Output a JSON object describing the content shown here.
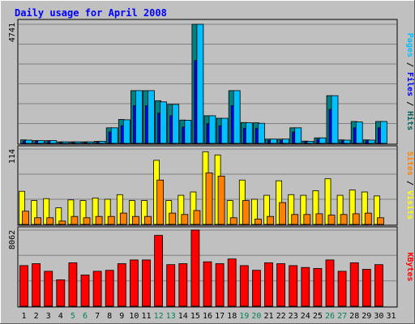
{
  "chart_data": {
    "type": "bar",
    "title": "Daily usage for April 2008",
    "categories": [
      "1",
      "2",
      "3",
      "4",
      "5",
      "6",
      "7",
      "8",
      "9",
      "10",
      "11",
      "12",
      "13",
      "14",
      "15",
      "16",
      "17",
      "18",
      "19",
      "20",
      "21",
      "22",
      "23",
      "24",
      "25",
      "26",
      "27",
      "28",
      "29",
      "30",
      "31"
    ],
    "weekend_days": [
      "5",
      "6",
      "12",
      "13",
      "19",
      "20",
      "26",
      "27"
    ],
    "panels": [
      {
        "id": "hits-files-pages",
        "max_label": "4741",
        "ymax": 4741,
        "labels": [
          "Pages",
          "Files",
          "Hits"
        ],
        "label_colors": [
          "#00c0ff",
          "#0000ff",
          "#006060"
        ],
        "series": [
          {
            "name": "Hits",
            "color": "#008080",
            "values": [
              140,
              110,
              110,
              60,
              60,
              60,
              80,
              620,
              950,
              2100,
              2100,
              1700,
              1550,
              930,
              4741,
              1100,
              1000,
              2100,
              830,
              820,
              170,
              170,
              620,
              90,
              220,
              1900,
              140,
              870,
              140,
              870,
              0
            ]
          },
          {
            "name": "Files",
            "color": "#0000ff",
            "values": [
              95,
              80,
              80,
              40,
              40,
              40,
              55,
              450,
              700,
              1500,
              1500,
              1200,
              1100,
              650,
              3300,
              780,
              700,
              1500,
              600,
              590,
              120,
              120,
              450,
              60,
              160,
              1350,
              100,
              620,
              100,
              620,
              0
            ]
          },
          {
            "name": "Pages",
            "color": "#00c0ff",
            "values": [
              130,
              110,
              110,
              60,
              60,
              60,
              80,
              620,
              940,
              2100,
              2100,
              1650,
              1550,
              920,
              4741,
              1100,
              1000,
              2100,
              820,
              800,
              170,
              170,
              620,
              80,
              220,
              1900,
              130,
              850,
              130,
              870,
              0
            ]
          }
        ]
      },
      {
        "id": "visits-sites",
        "max_label": "114",
        "ymax": 114,
        "labels": [
          "Sites",
          "Visits"
        ],
        "label_colors": [
          "#ff8000",
          "#ffff00"
        ],
        "series": [
          {
            "name": "Visits",
            "color": "#ffff00",
            "values": [
              50,
              36,
              39,
              25,
              37,
              36,
              40,
              38,
              45,
              36,
              36,
              97,
              36,
              44,
              49,
              110,
              105,
              36,
              67,
              38,
              44,
              66,
              45,
              44,
              51,
              69,
              44,
              52,
              49,
              43,
              0
            ]
          },
          {
            "name": "Sites",
            "color": "#ff8000",
            "values": [
              20,
              10,
              10,
              5,
              12,
              10,
              12,
              12,
              17,
              12,
              12,
              67,
              17,
              15,
              21,
              78,
              73,
              10,
              36,
              8,
              12,
              33,
              15,
              15,
              16,
              14,
              15,
              16,
              17,
              10,
              0
            ]
          }
        ]
      },
      {
        "id": "kbytes",
        "max_label": "8062",
        "ymax": 8062,
        "labels": [
          "KBytes"
        ],
        "label_colors": [
          "#ff0000"
        ],
        "series": [
          {
            "name": "KBytes",
            "color": "#ff0000",
            "values": [
              4300,
              4500,
              3700,
              2800,
              4600,
              3300,
              3700,
              3800,
              4500,
              4900,
              4900,
              7500,
              4400,
              4500,
              8062,
              4700,
              4500,
              5000,
              4300,
              3800,
              4600,
              4500,
              4300,
              4100,
              4000,
              4900,
              3700,
              4600,
              3900,
              4400,
              0
            ]
          }
        ]
      }
    ]
  },
  "colors": {
    "background": "#c0c0c0",
    "plot": "#c0c0c0",
    "title": "#0000ff",
    "axis_text": "#000000",
    "weekend_text": "#00805a",
    "grid": "#808080"
  }
}
